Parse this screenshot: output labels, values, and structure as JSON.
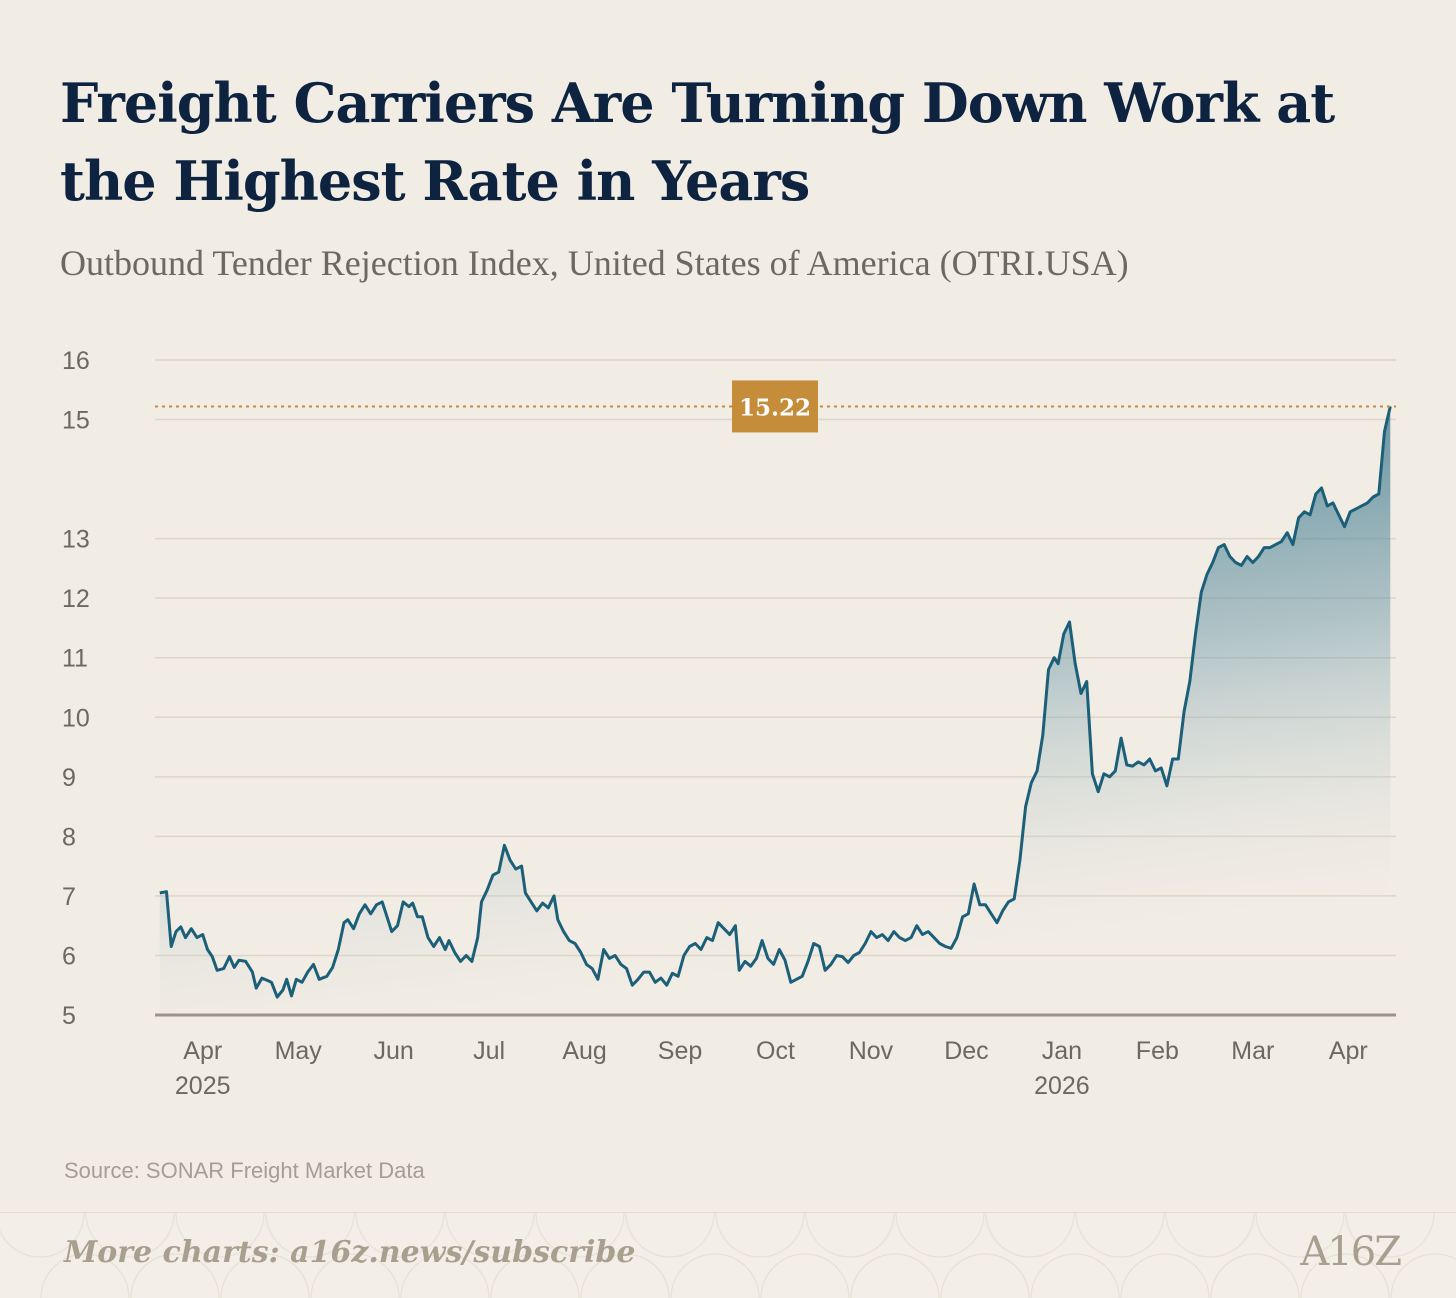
{
  "title": "Freight Carriers Are Turning Down Work at the Highest Rate in Years",
  "subtitle": "Outbound Tender Rejection Index, United States of America (OTRI.USA)",
  "source": "Source: SONAR Freight Market Data",
  "footer": {
    "cta": "More charts: a16z.news/subscribe",
    "logo": "A16Z"
  },
  "colors": {
    "line": "#1b5f78",
    "fill_top": "#1b5f78",
    "annotation": "#c58d3a",
    "grid": "#dcd5c8",
    "axis_text": "#6c6862",
    "title": "#0d2340"
  },
  "chart_data": {
    "type": "area",
    "title": "Freight Carriers Are Turning Down Work at the Highest Rate in Years",
    "subtitle": "Outbound Tender Rejection Index, United States of America (OTRI.USA)",
    "xlabel": "",
    "ylabel": "",
    "ylim": [
      5,
      16
    ],
    "y_ticks": [
      16,
      15,
      13,
      12,
      11,
      10,
      9,
      8,
      7,
      6,
      5
    ],
    "x_ticks": [
      {
        "label": "Apr",
        "year": "2025"
      },
      {
        "label": "May",
        "year": ""
      },
      {
        "label": "Jun",
        "year": ""
      },
      {
        "label": "Jul",
        "year": ""
      },
      {
        "label": "Aug",
        "year": ""
      },
      {
        "label": "Sep",
        "year": ""
      },
      {
        "label": "Oct",
        "year": ""
      },
      {
        "label": "Nov",
        "year": ""
      },
      {
        "label": "Dec",
        "year": ""
      },
      {
        "label": "Jan",
        "year": "2026"
      },
      {
        "label": "Feb",
        "year": ""
      },
      {
        "label": "Mar",
        "year": ""
      },
      {
        "label": "Apr",
        "year": ""
      }
    ],
    "x_range": [
      -0.5,
      12.5
    ],
    "grid": true,
    "annotation": {
      "value": 15.22,
      "label": "15.22",
      "style": "dotted reference line"
    },
    "series": [
      {
        "name": "OTRI.USA",
        "points": [
          [
            -0.45,
            7.05
          ],
          [
            -0.38,
            7.07
          ],
          [
            -0.33,
            6.15
          ],
          [
            -0.28,
            6.4
          ],
          [
            -0.23,
            6.48
          ],
          [
            -0.18,
            6.3
          ],
          [
            -0.12,
            6.45
          ],
          [
            -0.06,
            6.3
          ],
          [
            0.0,
            6.35
          ],
          [
            0.05,
            6.1
          ],
          [
            0.1,
            5.98
          ],
          [
            0.15,
            5.75
          ],
          [
            0.22,
            5.78
          ],
          [
            0.28,
            5.98
          ],
          [
            0.33,
            5.8
          ],
          [
            0.38,
            5.92
          ],
          [
            0.45,
            5.9
          ],
          [
            0.52,
            5.72
          ],
          [
            0.56,
            5.45
          ],
          [
            0.62,
            5.62
          ],
          [
            0.68,
            5.58
          ],
          [
            0.72,
            5.55
          ],
          [
            0.78,
            5.3
          ],
          [
            0.84,
            5.42
          ],
          [
            0.88,
            5.6
          ],
          [
            0.93,
            5.32
          ],
          [
            0.98,
            5.6
          ],
          [
            1.04,
            5.55
          ],
          [
            1.1,
            5.72
          ],
          [
            1.16,
            5.85
          ],
          [
            1.22,
            5.6
          ],
          [
            1.3,
            5.65
          ],
          [
            1.36,
            5.8
          ],
          [
            1.42,
            6.1
          ],
          [
            1.48,
            6.55
          ],
          [
            1.52,
            6.6
          ],
          [
            1.58,
            6.45
          ],
          [
            1.64,
            6.7
          ],
          [
            1.7,
            6.85
          ],
          [
            1.76,
            6.7
          ],
          [
            1.82,
            6.85
          ],
          [
            1.88,
            6.9
          ],
          [
            1.93,
            6.65
          ],
          [
            1.98,
            6.4
          ],
          [
            2.04,
            6.5
          ],
          [
            2.1,
            6.9
          ],
          [
            2.16,
            6.82
          ],
          [
            2.2,
            6.88
          ],
          [
            2.25,
            6.65
          ],
          [
            2.3,
            6.65
          ],
          [
            2.36,
            6.3
          ],
          [
            2.42,
            6.15
          ],
          [
            2.48,
            6.3
          ],
          [
            2.54,
            6.1
          ],
          [
            2.58,
            6.25
          ],
          [
            2.64,
            6.05
          ],
          [
            2.7,
            5.9
          ],
          [
            2.76,
            6.0
          ],
          [
            2.82,
            5.9
          ],
          [
            2.88,
            6.3
          ],
          [
            2.92,
            6.9
          ],
          [
            2.98,
            7.1
          ],
          [
            3.04,
            7.35
          ],
          [
            3.1,
            7.4
          ],
          [
            3.16,
            7.85
          ],
          [
            3.22,
            7.6
          ],
          [
            3.28,
            7.45
          ],
          [
            3.34,
            7.5
          ],
          [
            3.38,
            7.05
          ],
          [
            3.44,
            6.9
          ],
          [
            3.5,
            6.75
          ],
          [
            3.56,
            6.88
          ],
          [
            3.62,
            6.8
          ],
          [
            3.68,
            7.0
          ],
          [
            3.72,
            6.6
          ],
          [
            3.78,
            6.4
          ],
          [
            3.84,
            6.25
          ],
          [
            3.9,
            6.2
          ],
          [
            3.96,
            6.05
          ],
          [
            4.02,
            5.85
          ],
          [
            4.08,
            5.78
          ],
          [
            4.14,
            5.6
          ],
          [
            4.2,
            6.1
          ],
          [
            4.26,
            5.95
          ],
          [
            4.32,
            6.0
          ],
          [
            4.38,
            5.85
          ],
          [
            4.44,
            5.78
          ],
          [
            4.5,
            5.5
          ],
          [
            4.56,
            5.6
          ],
          [
            4.62,
            5.72
          ],
          [
            4.68,
            5.72
          ],
          [
            4.74,
            5.55
          ],
          [
            4.8,
            5.62
          ],
          [
            4.86,
            5.5
          ],
          [
            4.92,
            5.7
          ],
          [
            4.98,
            5.65
          ],
          [
            5.04,
            6.0
          ],
          [
            5.1,
            6.15
          ],
          [
            5.16,
            6.2
          ],
          [
            5.22,
            6.1
          ],
          [
            5.28,
            6.3
          ],
          [
            5.34,
            6.25
          ],
          [
            5.4,
            6.55
          ],
          [
            5.46,
            6.45
          ],
          [
            5.52,
            6.35
          ],
          [
            5.58,
            6.5
          ],
          [
            5.62,
            5.75
          ],
          [
            5.68,
            5.9
          ],
          [
            5.74,
            5.82
          ],
          [
            5.8,
            5.95
          ],
          [
            5.86,
            6.25
          ],
          [
            5.92,
            5.95
          ],
          [
            5.98,
            5.85
          ],
          [
            6.04,
            6.1
          ],
          [
            6.1,
            5.92
          ],
          [
            6.16,
            5.55
          ],
          [
            6.22,
            5.6
          ],
          [
            6.28,
            5.65
          ],
          [
            6.34,
            5.9
          ],
          [
            6.4,
            6.2
          ],
          [
            6.46,
            6.15
          ],
          [
            6.52,
            5.75
          ],
          [
            6.58,
            5.85
          ],
          [
            6.64,
            6.0
          ],
          [
            6.7,
            5.98
          ],
          [
            6.76,
            5.88
          ],
          [
            6.82,
            6.0
          ],
          [
            6.88,
            6.05
          ],
          [
            6.94,
            6.2
          ],
          [
            7.0,
            6.4
          ],
          [
            7.06,
            6.3
          ],
          [
            7.12,
            6.35
          ],
          [
            7.18,
            6.25
          ],
          [
            7.24,
            6.4
          ],
          [
            7.3,
            6.3
          ],
          [
            7.36,
            6.25
          ],
          [
            7.42,
            6.3
          ],
          [
            7.48,
            6.5
          ],
          [
            7.54,
            6.35
          ],
          [
            7.6,
            6.4
          ],
          [
            7.66,
            6.3
          ],
          [
            7.72,
            6.2
          ],
          [
            7.78,
            6.15
          ],
          [
            7.84,
            6.12
          ],
          [
            7.9,
            6.3
          ],
          [
            7.96,
            6.65
          ],
          [
            8.02,
            6.7
          ],
          [
            8.08,
            7.2
          ],
          [
            8.14,
            6.85
          ],
          [
            8.2,
            6.85
          ],
          [
            8.26,
            6.7
          ],
          [
            8.32,
            6.55
          ],
          [
            8.38,
            6.75
          ],
          [
            8.44,
            6.9
          ],
          [
            8.5,
            6.95
          ],
          [
            8.56,
            7.6
          ],
          [
            8.62,
            8.5
          ],
          [
            8.68,
            8.9
          ],
          [
            8.74,
            9.1
          ],
          [
            8.8,
            9.7
          ],
          [
            8.86,
            10.8
          ],
          [
            8.92,
            11.0
          ],
          [
            8.96,
            10.9
          ],
          [
            9.02,
            11.4
          ],
          [
            9.08,
            11.6
          ],
          [
            9.14,
            10.9
          ],
          [
            9.2,
            10.4
          ],
          [
            9.26,
            10.6
          ],
          [
            9.32,
            9.05
          ],
          [
            9.38,
            8.75
          ],
          [
            9.44,
            9.05
          ],
          [
            9.5,
            9.0
          ],
          [
            9.56,
            9.1
          ],
          [
            9.62,
            9.65
          ],
          [
            9.68,
            9.2
          ],
          [
            9.74,
            9.18
          ],
          [
            9.8,
            9.25
          ],
          [
            9.86,
            9.2
          ],
          [
            9.92,
            9.3
          ],
          [
            9.98,
            9.1
          ],
          [
            10.04,
            9.15
          ],
          [
            10.1,
            8.85
          ],
          [
            10.16,
            9.3
          ],
          [
            10.22,
            9.3
          ],
          [
            10.28,
            10.1
          ],
          [
            10.34,
            10.6
          ],
          [
            10.4,
            11.4
          ],
          [
            10.46,
            12.1
          ],
          [
            10.52,
            12.4
          ],
          [
            10.58,
            12.6
          ],
          [
            10.64,
            12.85
          ],
          [
            10.7,
            12.9
          ],
          [
            10.76,
            12.7
          ],
          [
            10.82,
            12.6
          ],
          [
            10.88,
            12.55
          ],
          [
            10.94,
            12.7
          ],
          [
            11.0,
            12.6
          ],
          [
            11.06,
            12.7
          ],
          [
            11.12,
            12.85
          ],
          [
            11.18,
            12.85
          ],
          [
            11.24,
            12.9
          ],
          [
            11.3,
            12.95
          ],
          [
            11.36,
            13.1
          ],
          [
            11.42,
            12.9
          ],
          [
            11.48,
            13.35
          ],
          [
            11.54,
            13.45
          ],
          [
            11.6,
            13.4
          ],
          [
            11.66,
            13.75
          ],
          [
            11.72,
            13.85
          ],
          [
            11.78,
            13.55
          ],
          [
            11.84,
            13.6
          ],
          [
            11.9,
            13.4
          ],
          [
            11.96,
            13.2
          ],
          [
            12.02,
            13.45
          ],
          [
            12.08,
            13.5
          ],
          [
            12.14,
            13.55
          ],
          [
            12.2,
            13.6
          ],
          [
            12.26,
            13.7
          ],
          [
            12.32,
            13.75
          ],
          [
            12.38,
            14.8
          ],
          [
            12.44,
            15.22
          ]
        ]
      }
    ]
  }
}
